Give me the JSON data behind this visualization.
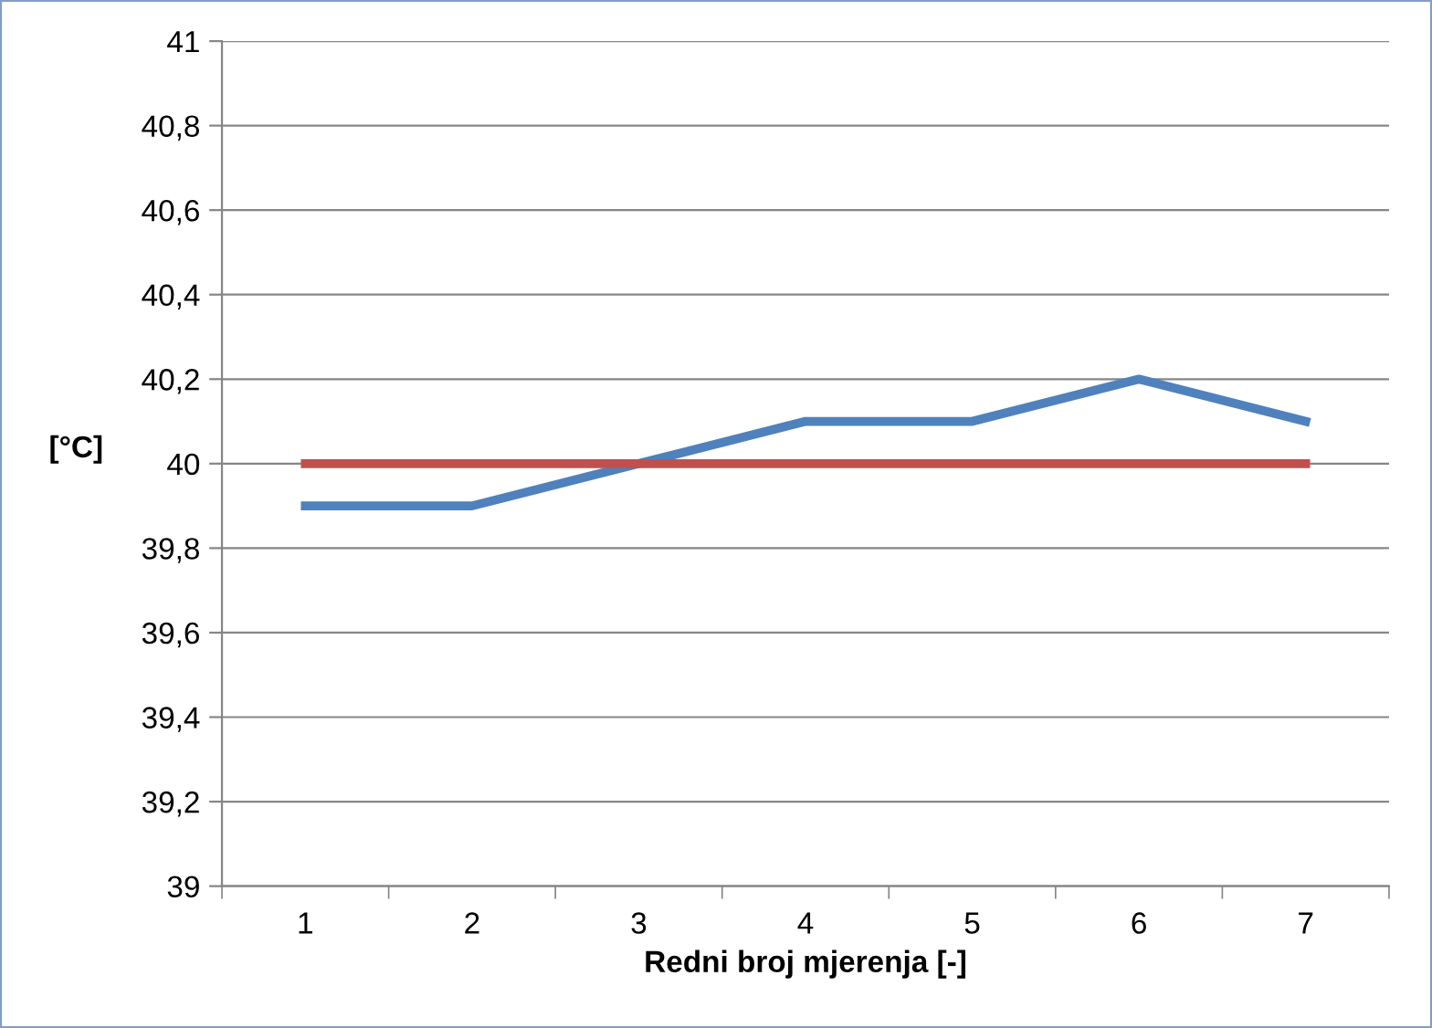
{
  "chart_data": {
    "type": "line",
    "xlabel": "Redni broj mjerenja [-]",
    "ylabel": "[°C]",
    "categories": [
      "1",
      "2",
      "3",
      "4",
      "5",
      "6",
      "7"
    ],
    "series": [
      {
        "color": "#4f81bd",
        "values": [
          39.9,
          39.9,
          40.0,
          40.1,
          40.1,
          40.2,
          40.1
        ]
      },
      {
        "color": "#c0504d",
        "values": [
          40,
          40,
          40,
          40,
          40,
          40,
          40
        ]
      }
    ],
    "ylim": [
      39,
      41
    ],
    "yticks": [
      39,
      {
        "value": 39.2,
        "label": "39,2"
      },
      {
        "value": 39.4,
        "label": "39,4"
      },
      {
        "value": 39.6,
        "label": "39,6"
      },
      {
        "value": 39.8,
        "label": "39,8"
      },
      40,
      {
        "value": 40.2,
        "label": "40,2"
      },
      {
        "value": 40.4,
        "label": "40,4"
      },
      {
        "value": 40.6,
        "label": "40,6"
      },
      {
        "value": 40.8,
        "label": "40,8"
      },
      41
    ],
    "grid": "y",
    "marker": "none",
    "line_style": "solid",
    "legend": false
  }
}
